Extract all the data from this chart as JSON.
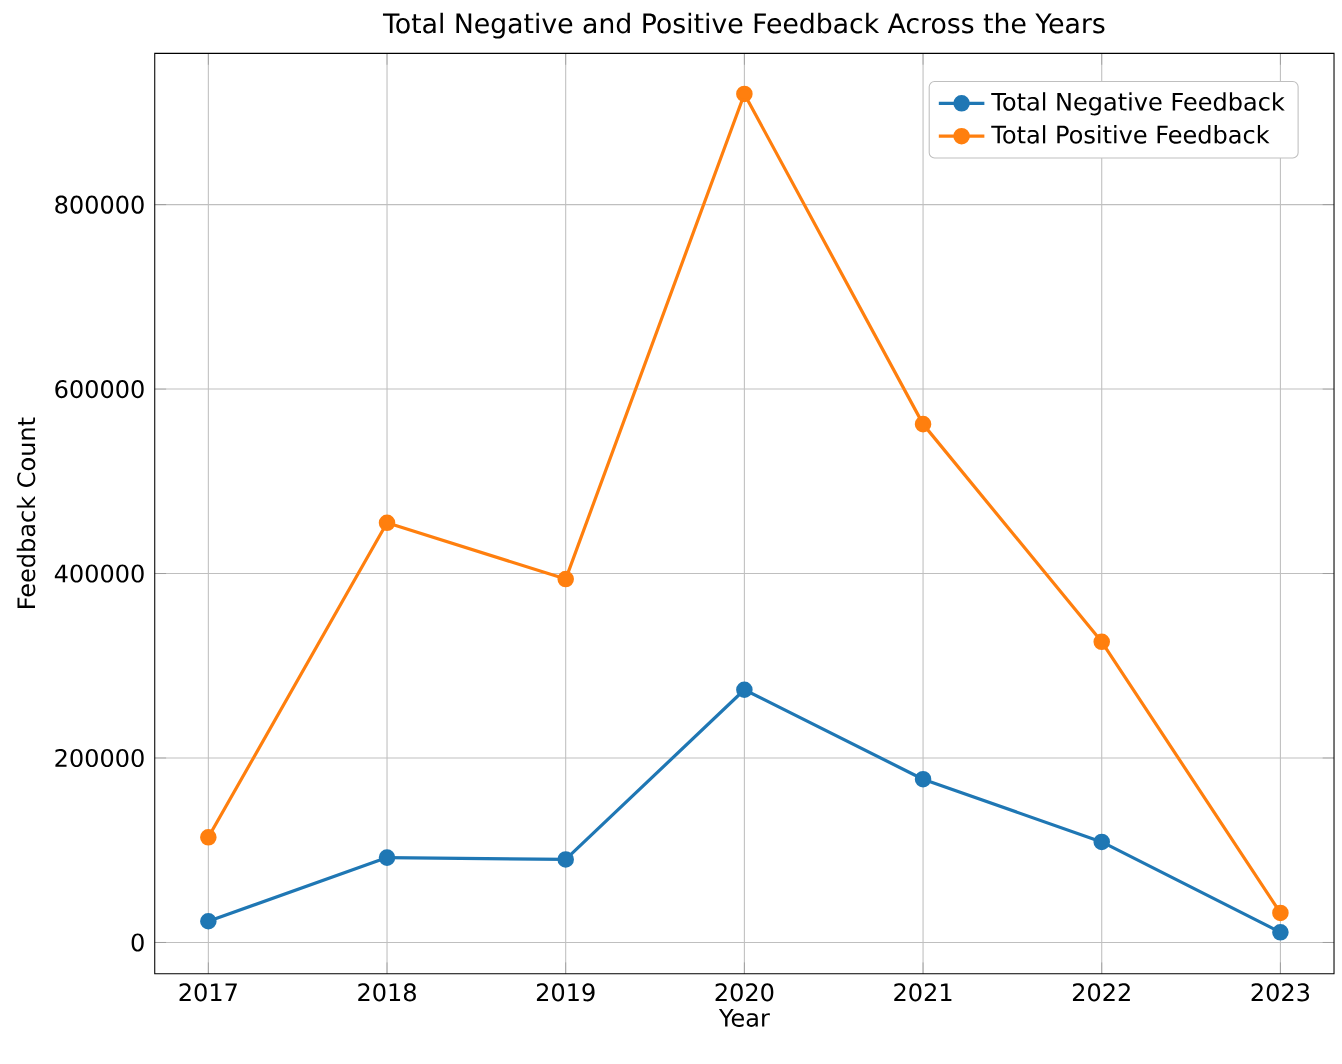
{
  "chart_data": {
    "type": "line",
    "title": "Total Negative and Positive Feedback Across the Years",
    "xlabel": "Year",
    "ylabel": "Feedback Count",
    "x": [
      2017,
      2018,
      2019,
      2020,
      2021,
      2022,
      2023
    ],
    "series": [
      {
        "name": "Total Negative Feedback",
        "color": "#1f77b4",
        "values": [
          23000,
          92000,
          90000,
          274000,
          177000,
          109000,
          11000
        ]
      },
      {
        "name": "Total Positive Feedback",
        "color": "#ff7f0e",
        "values": [
          114000,
          455000,
          394000,
          920000,
          562000,
          326000,
          32000
        ]
      }
    ],
    "xlim": [
      2016.7,
      2023.3
    ],
    "ylim": [
      -34000,
      964000
    ],
    "xticks": [
      2017,
      2018,
      2019,
      2020,
      2021,
      2022,
      2023
    ],
    "yticks": [
      0,
      200000,
      400000,
      600000,
      800000
    ],
    "grid": true,
    "legend": "top right",
    "marker": "circle",
    "line_style": "solid"
  }
}
